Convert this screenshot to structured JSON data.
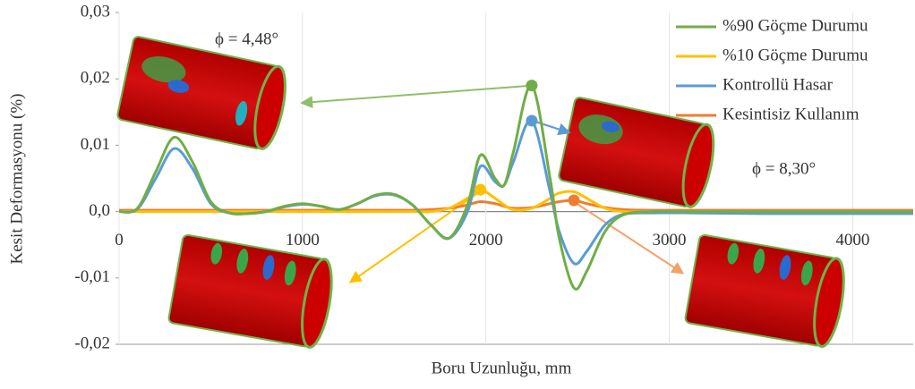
{
  "chart_data": {
    "type": "line",
    "xlabel": "Boru Uzunluğu, mm",
    "ylabel": "Kesit Deformasyonu (%)",
    "annotations": [
      "ϕ = 4,48°",
      "ϕ = 8,30°"
    ],
    "xlim": [
      0,
      4330
    ],
    "ylim": [
      -0.02,
      0.03
    ],
    "xticks": [
      0,
      1000,
      2000,
      3000,
      4000
    ],
    "yticks": [
      {
        "value": 0.03,
        "label": "0,03"
      },
      {
        "value": 0.02,
        "label": "0,02"
      },
      {
        "value": 0.01,
        "label": "0,01"
      },
      {
        "value": 0,
        "label": "0,0"
      },
      {
        "value": -0.01,
        "label": "-0,01"
      },
      {
        "value": -0.02,
        "label": "-0,02"
      }
    ],
    "grid": true,
    "legend": "top-right",
    "x": [
      0,
      100,
      200,
      300,
      400,
      500,
      600,
      700,
      800,
      900,
      1000,
      1100,
      1200,
      1300,
      1400,
      1500,
      1600,
      1700,
      1800,
      1900,
      1970,
      2050,
      2100,
      2150,
      2250,
      2350,
      2400,
      2480,
      2550,
      2650,
      2750,
      2900,
      3100,
      3500,
      4000,
      4330
    ],
    "series": [
      {
        "name": "%90 Göçme Durumu",
        "color": "#70ad47",
        "marker_x": 2250,
        "values": [
          0,
          0.0005,
          0.006,
          0.0112,
          0.0075,
          0.0015,
          -0.0002,
          -0.0003,
          0,
          0.0008,
          0.0012,
          0.0008,
          0.0003,
          0.0012,
          0.0025,
          0.0026,
          0.001,
          -0.002,
          -0.004,
          0.001,
          0.0085,
          0.005,
          0.004,
          0.009,
          0.019,
          0.005,
          -0.004,
          -0.0115,
          -0.009,
          -0.003,
          -0.0005,
          0,
          0,
          0,
          0,
          0
        ]
      },
      {
        "name": "%10 Göçme Durumu",
        "color": "#ffc000",
        "marker_x": 1970,
        "values": [
          0,
          0,
          0,
          0,
          0,
          0,
          0,
          0,
          0,
          0,
          0,
          0,
          0,
          0,
          0,
          0,
          0,
          0,
          0.0005,
          0.002,
          0.0033,
          0.002,
          0.001,
          0.0003,
          0.0005,
          0.002,
          0.0028,
          0.003,
          0.002,
          0.0005,
          0,
          0,
          0,
          0,
          0,
          0
        ]
      },
      {
        "name": "Kontrollü Hasar",
        "color": "#5b9bd5",
        "marker_x": 2250,
        "values": [
          0,
          0.0004,
          0.005,
          0.0095,
          0.0065,
          0.0012,
          -0.0002,
          -0.0003,
          0,
          0.0007,
          0.0011,
          0.0008,
          0.0003,
          0.0012,
          0.0024,
          0.0025,
          0.001,
          -0.002,
          -0.004,
          0,
          0.0068,
          0.0045,
          0.004,
          0.0075,
          0.0137,
          0.003,
          -0.003,
          -0.0078,
          -0.006,
          -0.002,
          -0.0004,
          -0.0002,
          -0.0002,
          -0.0003,
          -0.0003,
          -0.0003
        ]
      },
      {
        "name": "Kesintisiz Kullanım",
        "color": "#ed7d31",
        "marker_x": 2480,
        "values": [
          0.0002,
          0.0002,
          0.0002,
          0.0002,
          0.0002,
          0.0002,
          0.0002,
          0.0002,
          0.0002,
          0.0002,
          0.0002,
          0.0002,
          0.0002,
          0.0002,
          0.0002,
          0.0002,
          0.0002,
          0.0003,
          0.0005,
          0.001,
          0.0015,
          0.0012,
          0.0008,
          0.0005,
          0.0006,
          0.0012,
          0.0015,
          0.0017,
          0.0012,
          0.0006,
          0.0003,
          0.0002,
          0.0002,
          0.0002,
          0.0002,
          0.0002
        ]
      }
    ]
  }
}
